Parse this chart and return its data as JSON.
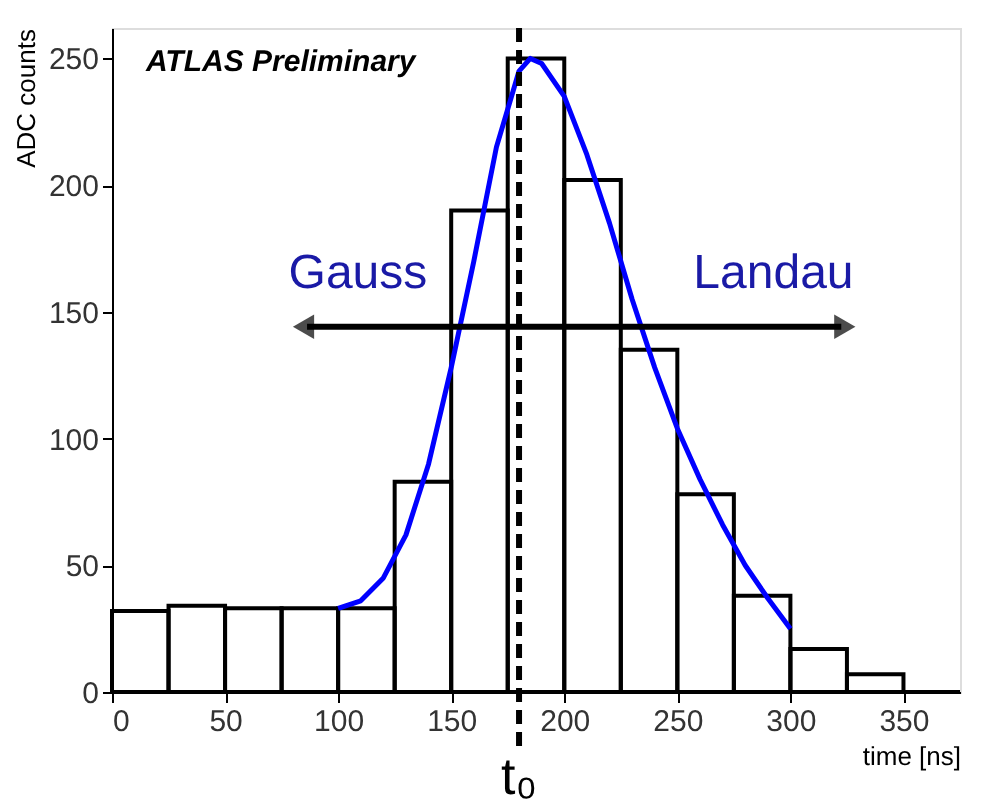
{
  "chart_data": {
    "type": "histogram",
    "xlabel": "time [ns]",
    "ylabel": "ADC counts",
    "bins": [
      0,
      25,
      50,
      75,
      100,
      125,
      150,
      175,
      200,
      225,
      250,
      275,
      300,
      325,
      350,
      375
    ],
    "values": [
      32,
      34,
      33,
      33,
      33,
      83,
      190,
      250,
      202,
      135,
      78,
      38,
      17,
      7,
      0
    ],
    "color": "#000000",
    "series": [
      {
        "type": "line",
        "color": "#0000ff",
        "x": [
          100,
          110,
          120,
          130,
          140,
          150,
          160,
          170,
          180,
          185,
          190,
          200,
          210,
          220,
          230,
          240,
          250,
          260,
          270,
          280,
          290,
          300
        ],
        "values": [
          33,
          36,
          45,
          62,
          90,
          128,
          170,
          215,
          245,
          250,
          248,
          235,
          212,
          185,
          155,
          128,
          104,
          84,
          66,
          50,
          37,
          25
        ]
      }
    ],
    "xlim": [
      0,
      375
    ],
    "ylim": [
      0,
      262
    ],
    "xticks": [
      0,
      50,
      100,
      150,
      200,
      250,
      300,
      350
    ],
    "yticks": [
      0,
      50,
      100,
      150,
      200,
      250
    ],
    "ref_lines": [
      {
        "axis": "x",
        "value": 180,
        "label": "t₀",
        "line_style": "dashed",
        "color": "#000000"
      }
    ],
    "annotations": [
      "ATLAS Preliminary",
      "Gauss",
      "Landau"
    ],
    "grid": false
  }
}
